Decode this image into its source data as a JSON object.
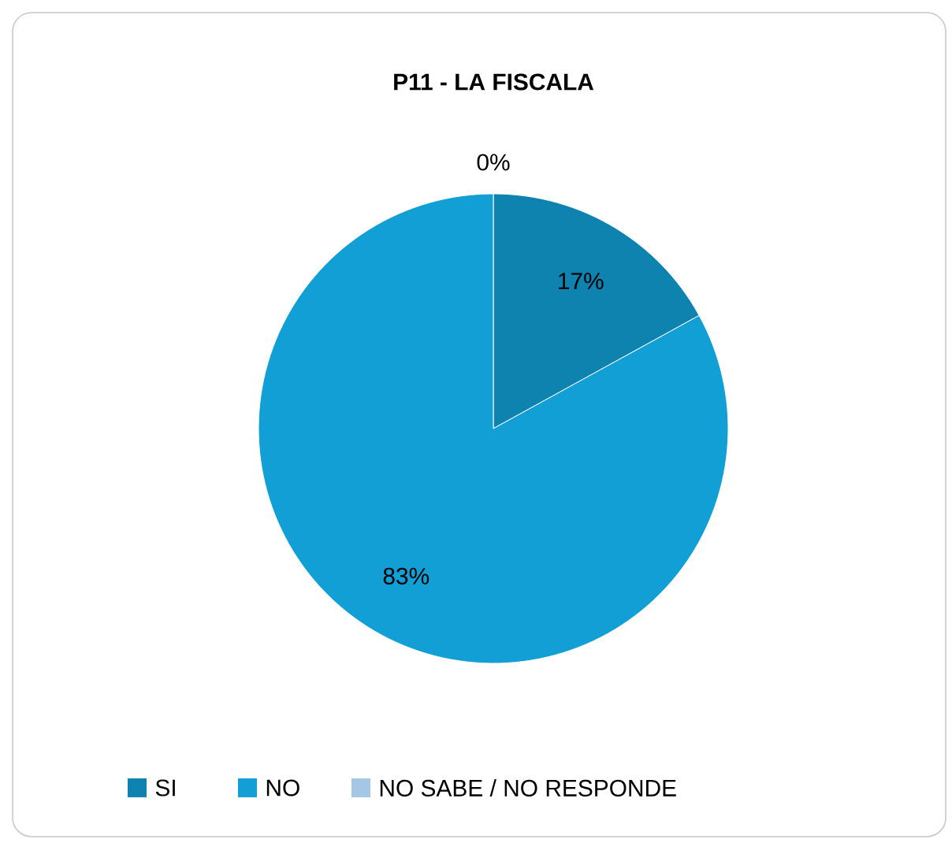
{
  "chart_data": {
    "type": "pie",
    "title": "P11 - LA FISCALA",
    "categories": [
      "SI",
      "NO",
      "NO SABE / NO RESPONDE"
    ],
    "values": [
      17,
      83,
      0
    ],
    "colors": [
      "#0e83b0",
      "#119fd6",
      "#a5c6e4"
    ],
    "value_labels": [
      "17%",
      "83%",
      "0%"
    ],
    "legend": "bottom"
  }
}
